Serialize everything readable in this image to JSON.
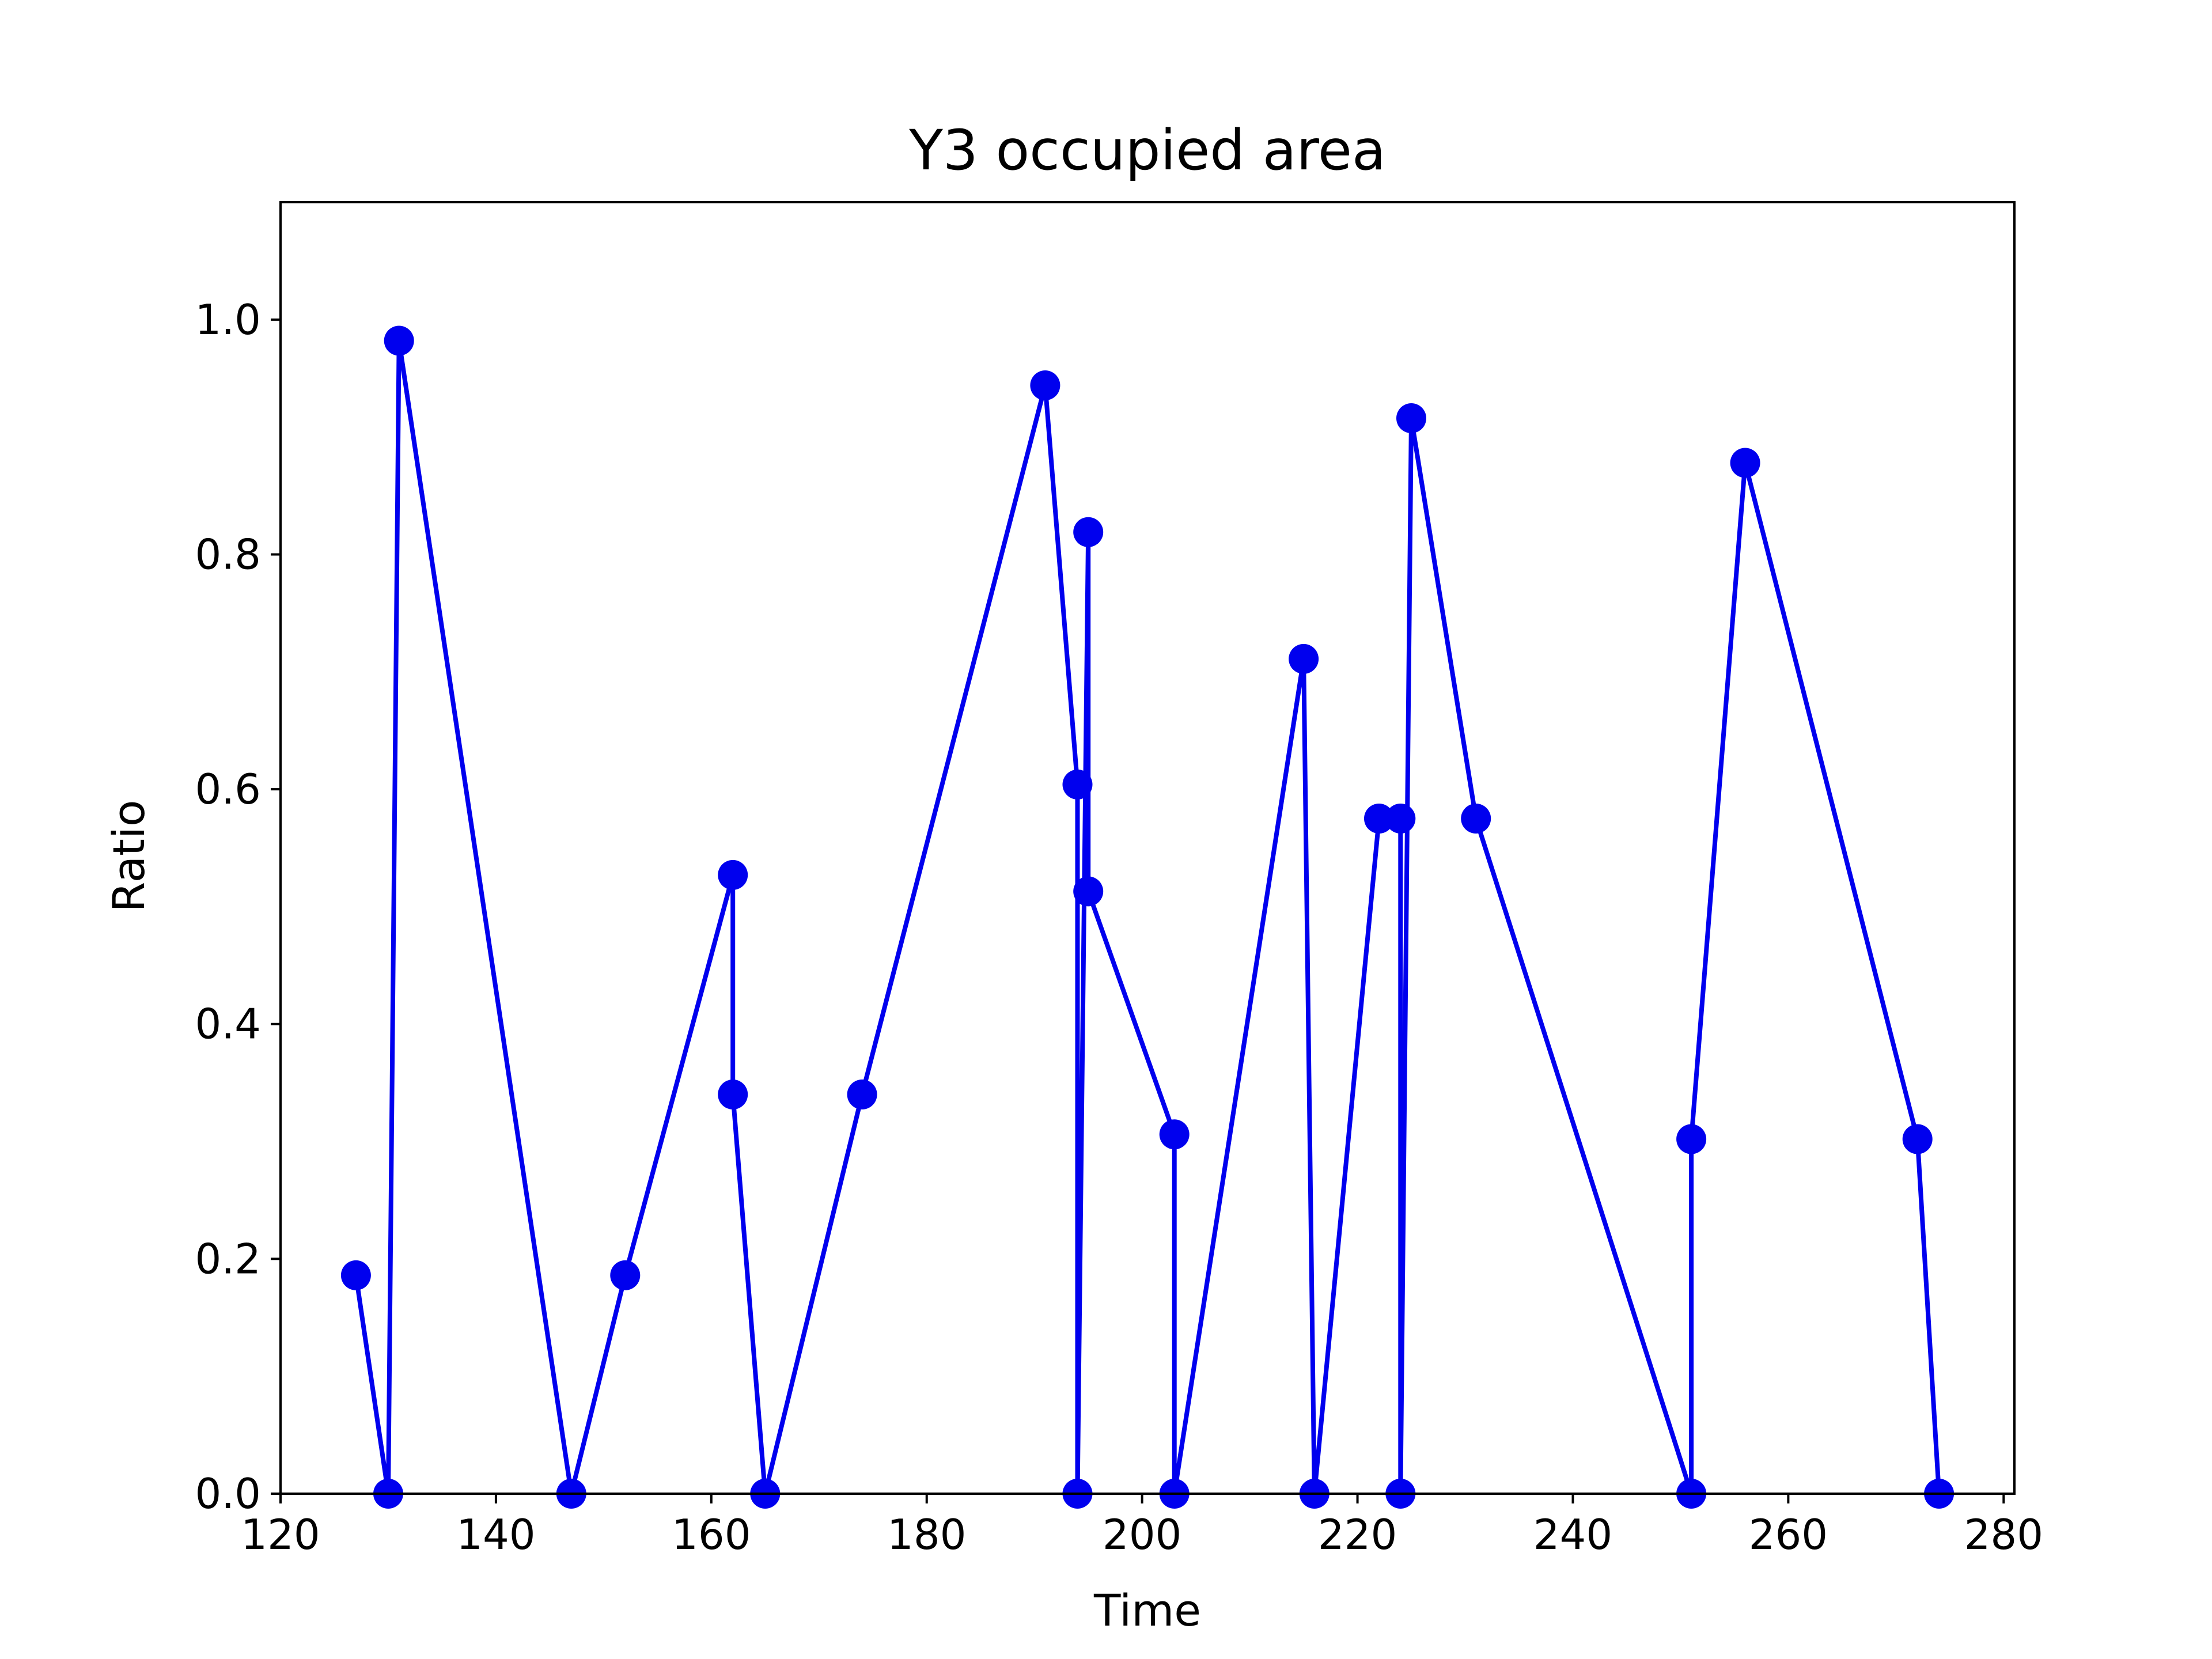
{
  "chart_data": {
    "type": "line",
    "title": "Y3 occupied area",
    "xlabel": "Time",
    "ylabel": "Ratio",
    "xlim": [
      120,
      281
    ],
    "ylim": [
      0.0,
      1.1
    ],
    "x_ticks": [
      120,
      140,
      160,
      180,
      200,
      220,
      240,
      260,
      280
    ],
    "y_ticks": [
      0.0,
      0.2,
      0.4,
      0.6,
      0.8,
      1.0
    ],
    "x_tick_labels": [
      "120",
      "140",
      "160",
      "180",
      "200",
      "220",
      "240",
      "260",
      "280"
    ],
    "y_tick_labels": [
      "0.0",
      "0.2",
      "0.4",
      "0.6",
      "0.8",
      "1.0"
    ],
    "grid": false,
    "legend": "none",
    "series": [
      {
        "color": "#0000ee",
        "marker": "circle",
        "x": [
          127,
          130,
          131,
          147,
          152,
          162,
          162,
          165,
          174,
          191,
          194,
          194,
          195,
          195,
          203,
          203,
          215,
          216,
          222,
          224,
          224,
          225,
          231,
          251,
          251,
          256,
          272,
          274
        ],
        "y": [
          0.186,
          0.0,
          0.982,
          0.0,
          0.186,
          0.527,
          0.34,
          0.0,
          0.34,
          0.944,
          0.604,
          0.0,
          0.819,
          0.513,
          0.306,
          0.0,
          0.711,
          0.0,
          0.575,
          0.575,
          0.0,
          0.916,
          0.575,
          0.0,
          0.302,
          0.878,
          0.302,
          0.0
        ]
      }
    ]
  }
}
